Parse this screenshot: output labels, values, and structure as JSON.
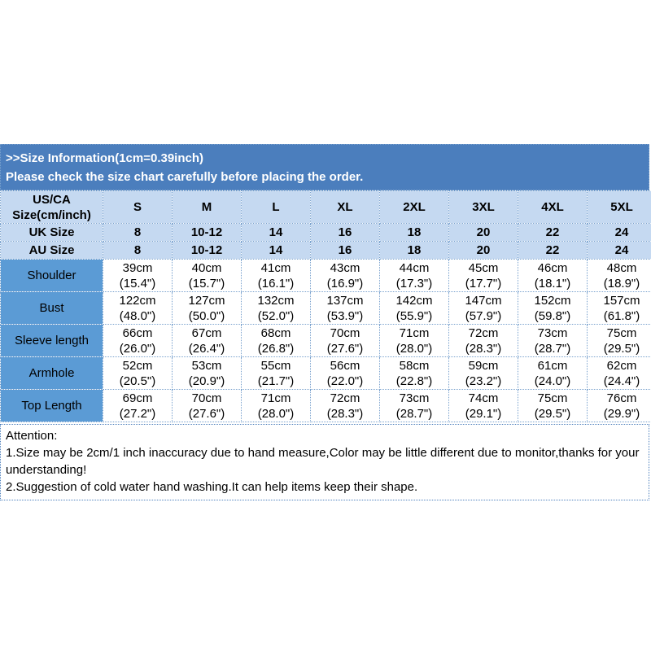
{
  "header": {
    "line1": ">>Size Information(1cm=0.39inch)",
    "line2": "Please check the size chart carefully before placing the order."
  },
  "size_table": {
    "corner_header": [
      "US/CA",
      "Size(cm/inch)"
    ],
    "size_columns": [
      "S",
      "M",
      "L",
      "XL",
      "2XL",
      "3XL",
      "4XL",
      "5XL"
    ],
    "region_rows": [
      {
        "label": "UK Size",
        "values": [
          "8",
          "10-12",
          "14",
          "16",
          "18",
          "20",
          "22",
          "24"
        ]
      },
      {
        "label": "AU Size",
        "values": [
          "8",
          "10-12",
          "14",
          "16",
          "18",
          "20",
          "22",
          "24"
        ]
      }
    ],
    "measurement_rows": [
      {
        "label": "Shoulder",
        "values": [
          [
            "39cm",
            "(15.4\")"
          ],
          [
            "40cm",
            "(15.7\")"
          ],
          [
            "41cm",
            "(16.1\")"
          ],
          [
            "43cm",
            "(16.9\")"
          ],
          [
            "44cm",
            "(17.3\")"
          ],
          [
            "45cm",
            "(17.7\")"
          ],
          [
            "46cm",
            "(18.1\")"
          ],
          [
            "48cm",
            "(18.9\")"
          ]
        ]
      },
      {
        "label": "Bust",
        "values": [
          [
            "122cm",
            "(48.0\")"
          ],
          [
            "127cm",
            "(50.0\")"
          ],
          [
            "132cm",
            "(52.0\")"
          ],
          [
            "137cm",
            "(53.9\")"
          ],
          [
            "142cm",
            "(55.9\")"
          ],
          [
            "147cm",
            "(57.9\")"
          ],
          [
            "152cm",
            "(59.8\")"
          ],
          [
            "157cm",
            "(61.8\")"
          ]
        ]
      },
      {
        "label": "Sleeve length",
        "values": [
          [
            "66cm",
            "(26.0\")"
          ],
          [
            "67cm",
            "(26.4\")"
          ],
          [
            "68cm",
            "(26.8\")"
          ],
          [
            "70cm",
            "(27.6\")"
          ],
          [
            "71cm",
            "(28.0\")"
          ],
          [
            "72cm",
            "(28.3\")"
          ],
          [
            "73cm",
            "(28.7\")"
          ],
          [
            "75cm",
            "(29.5\")"
          ]
        ]
      },
      {
        "label": "Armhole",
        "values": [
          [
            "52cm",
            "(20.5\")"
          ],
          [
            "53cm",
            "(20.9\")"
          ],
          [
            "55cm",
            "(21.7\")"
          ],
          [
            "56cm",
            "(22.0\")"
          ],
          [
            "58cm",
            "(22.8\")"
          ],
          [
            "59cm",
            "(23.2\")"
          ],
          [
            "61cm",
            "(24.0\")"
          ],
          [
            "62cm",
            "(24.4\")"
          ]
        ]
      },
      {
        "label": "Top Length",
        "values": [
          [
            "69cm",
            "(27.2\")"
          ],
          [
            "70cm",
            "(27.6\")"
          ],
          [
            "71cm",
            "(28.0\")"
          ],
          [
            "72cm",
            "(28.3\")"
          ],
          [
            "73cm",
            "(28.7\")"
          ],
          [
            "74cm",
            "(29.1\")"
          ],
          [
            "75cm",
            "(29.5\")"
          ],
          [
            "76cm",
            "(29.9\")"
          ]
        ]
      }
    ]
  },
  "attention": {
    "heading": "Attention:",
    "lines": [
      "1.Size may be 2cm/1 inch inaccuracy due to hand measure,Color may be little different due to monitor,thanks for your",
      "understanding!",
      "2.Suggestion of cold water hand washing.It can help items keep their shape."
    ]
  },
  "colors": {
    "header_bar_bg": "#4b7ebd",
    "column_header_bg": "#c5d9f1",
    "row_label_bg": "#5b9bd5",
    "grid_border": "#7aa2ce",
    "attention_border": "#4f81bd",
    "header_text": "#ffffff",
    "body_text": "#000000"
  }
}
